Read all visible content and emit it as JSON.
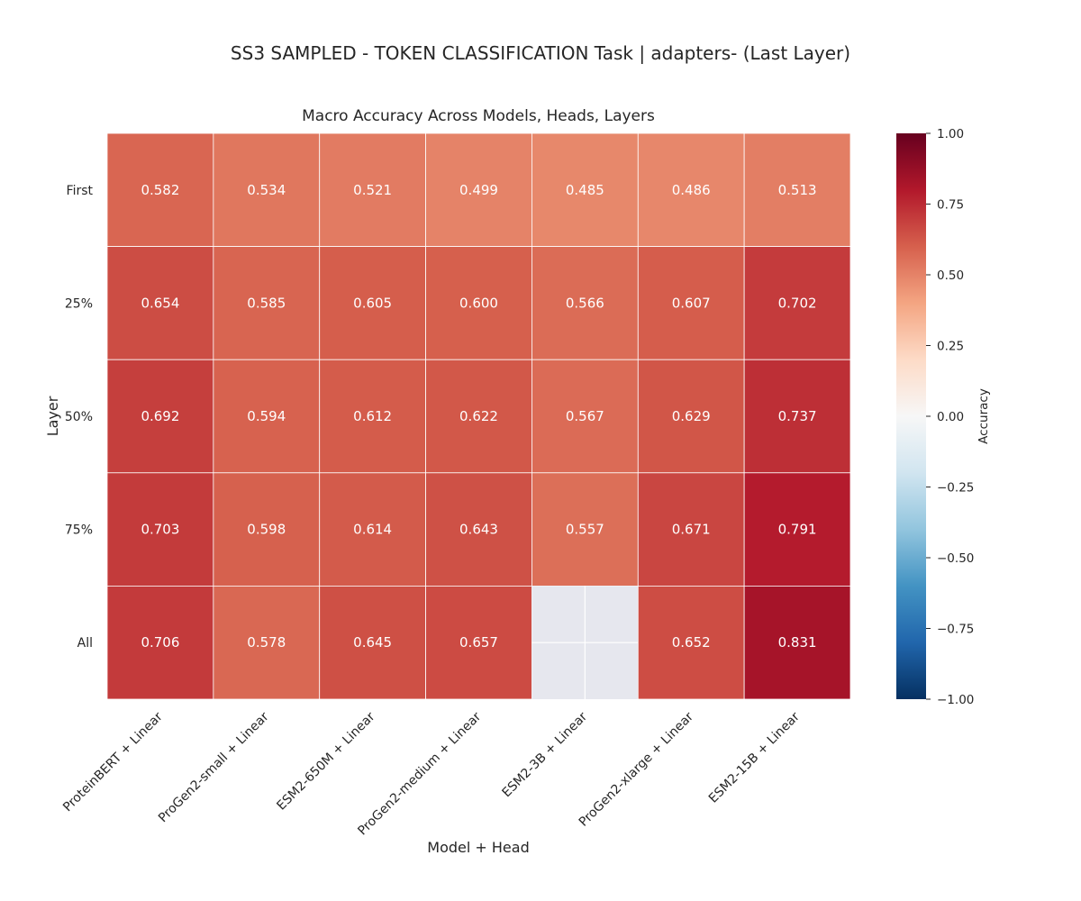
{
  "chart_data": {
    "type": "heatmap",
    "suptitle": "SS3 SAMPLED - TOKEN CLASSIFICATION Task | adapters- (Last Layer)",
    "title": "Macro Accuracy Across Models, Heads, Layers",
    "xlabel": "Model + Head",
    "ylabel": "Layer",
    "x_categories": [
      "ProteinBERT + Linear",
      "ProGen2-small + Linear",
      "ESM2-650M + Linear",
      "ProGen2-medium + Linear",
      "ESM2-3B + Linear",
      "ProGen2-xlarge + Linear",
      "ESM2-15B + Linear"
    ],
    "y_categories": [
      "First",
      "25%",
      "50%",
      "75%",
      "All"
    ],
    "values": [
      [
        0.582,
        0.534,
        0.521,
        0.499,
        0.485,
        0.486,
        0.513
      ],
      [
        0.654,
        0.585,
        0.605,
        0.6,
        0.566,
        0.607,
        0.702
      ],
      [
        0.692,
        0.594,
        0.612,
        0.622,
        0.567,
        0.629,
        0.737
      ],
      [
        0.703,
        0.598,
        0.614,
        0.643,
        0.557,
        0.671,
        0.791
      ],
      [
        0.706,
        0.578,
        0.645,
        0.657,
        null,
        0.652,
        0.831
      ]
    ],
    "missing_cell_color": "#e6e7ee",
    "colorbar": {
      "label": "Accuracy",
      "vmin": -1.0,
      "vmax": 1.0,
      "ticks": [
        "1.00",
        "0.75",
        "0.50",
        "0.25",
        "0.00",
        "−0.25",
        "−0.50",
        "−0.75",
        "−1.00"
      ],
      "tick_values": [
        1.0,
        0.75,
        0.5,
        0.25,
        0.0,
        -0.25,
        -0.5,
        -0.75,
        -1.0
      ],
      "colormap": "RdBu_r",
      "colormap_stops": [
        "#053061",
        "#2166ac",
        "#4393c3",
        "#92c5de",
        "#d1e5f0",
        "#f7f7f7",
        "#fddbc7",
        "#f4a582",
        "#d6604d",
        "#b2182b",
        "#67001f"
      ]
    },
    "grid": false
  }
}
